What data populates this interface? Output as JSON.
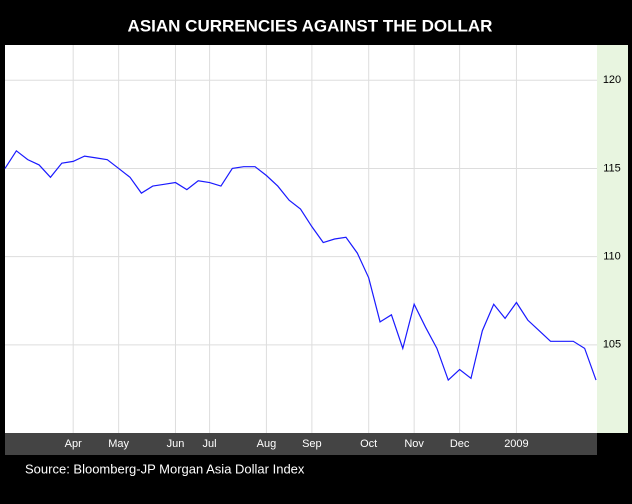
{
  "chart_data": {
    "type": "line",
    "title": "ASIAN CURRENCIES AGAINST THE DOLLAR",
    "source": "Source: Bloomberg-JP Morgan Asia Dollar Index",
    "categories": [
      null,
      null,
      null,
      null,
      null,
      null,
      "Apr",
      null,
      null,
      null,
      "May",
      null,
      null,
      null,
      null,
      "Jun",
      null,
      null,
      "Jul",
      null,
      null,
      null,
      null,
      "Aug",
      null,
      null,
      null,
      "Sep",
      null,
      null,
      null,
      null,
      "Oct",
      null,
      null,
      null,
      "Nov",
      null,
      null,
      null,
      "Dec",
      null,
      null,
      null,
      null,
      "2009",
      null,
      null,
      null,
      null,
      null,
      null,
      null
    ],
    "series": [
      {
        "color": "#1a1aff",
        "values": [
          115.0,
          116.0,
          115.5,
          115.2,
          114.5,
          115.3,
          115.4,
          115.7,
          115.6,
          115.5,
          115.0,
          114.5,
          113.6,
          114.0,
          114.1,
          114.2,
          113.8,
          114.3,
          114.2,
          114.0,
          115.0,
          115.1,
          115.1,
          114.6,
          114.0,
          113.2,
          112.7,
          111.7,
          110.8,
          111.0,
          111.1,
          110.2,
          108.8,
          106.3,
          106.7,
          104.8,
          107.3,
          106.0,
          104.8,
          103.0,
          103.6,
          103.1,
          105.8,
          107.3,
          106.5,
          107.4,
          106.4,
          105.8,
          105.2,
          105.2,
          105.2,
          104.8,
          103.0
        ]
      }
    ],
    "ylim": [
      100,
      122
    ],
    "yticks": [
      105,
      110,
      115,
      120
    ],
    "grid": true
  }
}
